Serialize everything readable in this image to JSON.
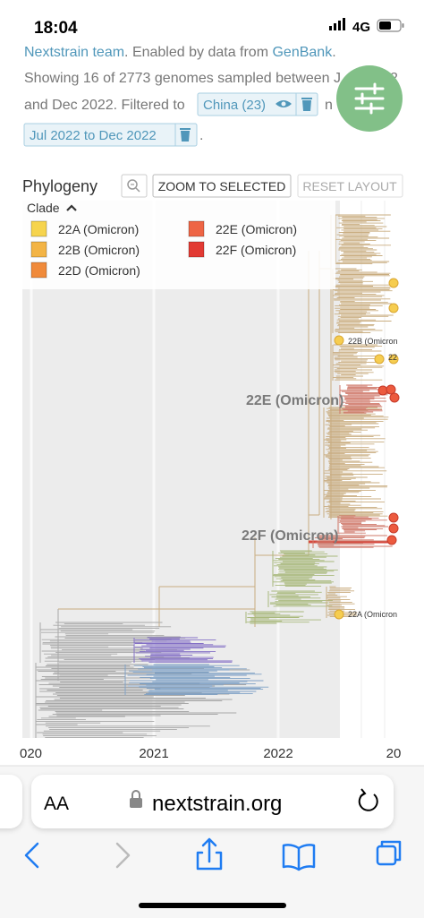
{
  "status_bar": {
    "time": "18:04",
    "network": "4G"
  },
  "description": {
    "credit_link": "Nextstrain team",
    "credit_text": ". Enabled by data from ",
    "credit_source": "GenBank",
    "credit_end": ".",
    "line1": "Showing 16 of 2773 genomes sampled between J",
    "line1_end": "2",
    "line2": "and Dec 2022. Filtered to",
    "filter_country": "China (23)",
    "line2_end": "n",
    "filter_date": "Jul 2022 to Dec 2022",
    "line3_end": "."
  },
  "phylogeny": {
    "title": "Phylogeny",
    "zoom_button": "ZOOM TO SELECTED",
    "reset_button": "RESET LAYOUT",
    "legend": {
      "title": "Clade",
      "items": [
        {
          "label": "22A (Omicron)",
          "color": "#f6d44e"
        },
        {
          "label": "22B (Omicron)",
          "color": "#f3b445"
        },
        {
          "label": "22D (Omicron)",
          "color": "#f08a3a"
        },
        {
          "label": "22E (Omicron)",
          "color": "#ee6545"
        },
        {
          "label": "22F (Omicron)",
          "color": "#e23a33"
        }
      ]
    },
    "clade_labels": [
      "22E (Omicron)",
      "22F (Omicron)"
    ],
    "tip_labels": [
      "22B (Omicron",
      "22",
      "22A (Omicron"
    ],
    "axis_labels": [
      "020",
      "2021",
      "2022",
      "20"
    ]
  },
  "browser": {
    "text_size": "AA",
    "url": "nextstrain.org"
  }
}
